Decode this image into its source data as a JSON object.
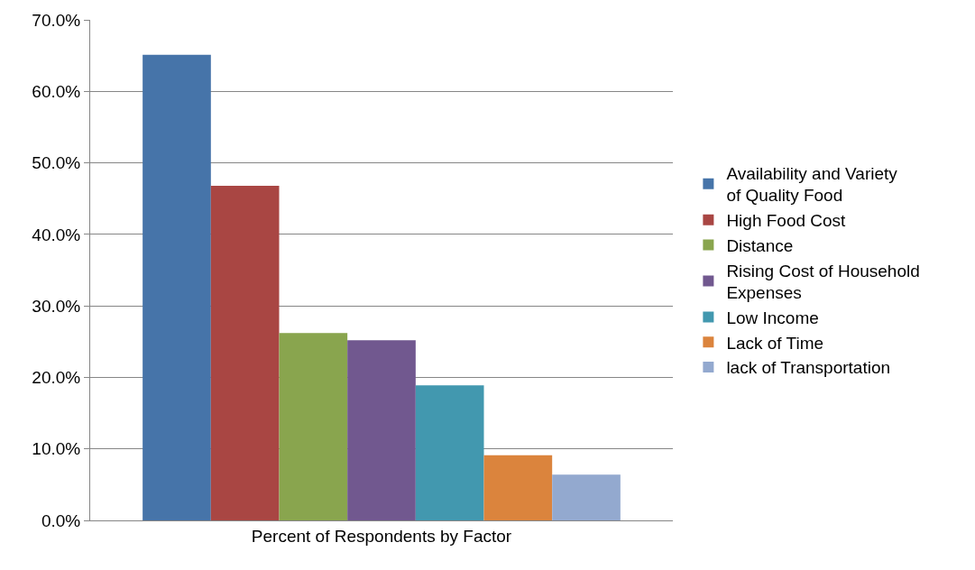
{
  "chart_data": {
    "type": "bar",
    "categories": [
      "Percent of Respondents by Factor"
    ],
    "series": [
      {
        "name": "Availability and Variety of Quality Food",
        "color": "#4674a9",
        "values": [
          65.1
        ]
      },
      {
        "name": "High Food Cost",
        "color": "#a94643",
        "values": [
          46.8
        ]
      },
      {
        "name": "Distance",
        "color": "#89a54e",
        "values": [
          26.2
        ]
      },
      {
        "name": "Rising Cost of Household Expenses",
        "color": "#71588f",
        "values": [
          25.2
        ]
      },
      {
        "name": "Low Income",
        "color": "#4298af",
        "values": [
          18.9
        ]
      },
      {
        "name": "Lack of Time",
        "color": "#db843d",
        "values": [
          9.1
        ]
      },
      {
        "name": "lack of Transportation",
        "color": "#93a9cf",
        "values": [
          6.4
        ]
      }
    ],
    "ylim": [
      0,
      70
    ],
    "yticks": [
      {
        "value": 0,
        "label": "0.0%"
      },
      {
        "value": 10,
        "label": "10.0%"
      },
      {
        "value": 20,
        "label": "20.0%"
      },
      {
        "value": 30,
        "label": "30.0%"
      },
      {
        "value": 40,
        "label": "40.0%"
      },
      {
        "value": 50,
        "label": "50.0%"
      },
      {
        "value": 60,
        "label": "60.0%"
      },
      {
        "value": 70,
        "label": "70.0%"
      }
    ],
    "grid": "y",
    "legend": "right"
  }
}
